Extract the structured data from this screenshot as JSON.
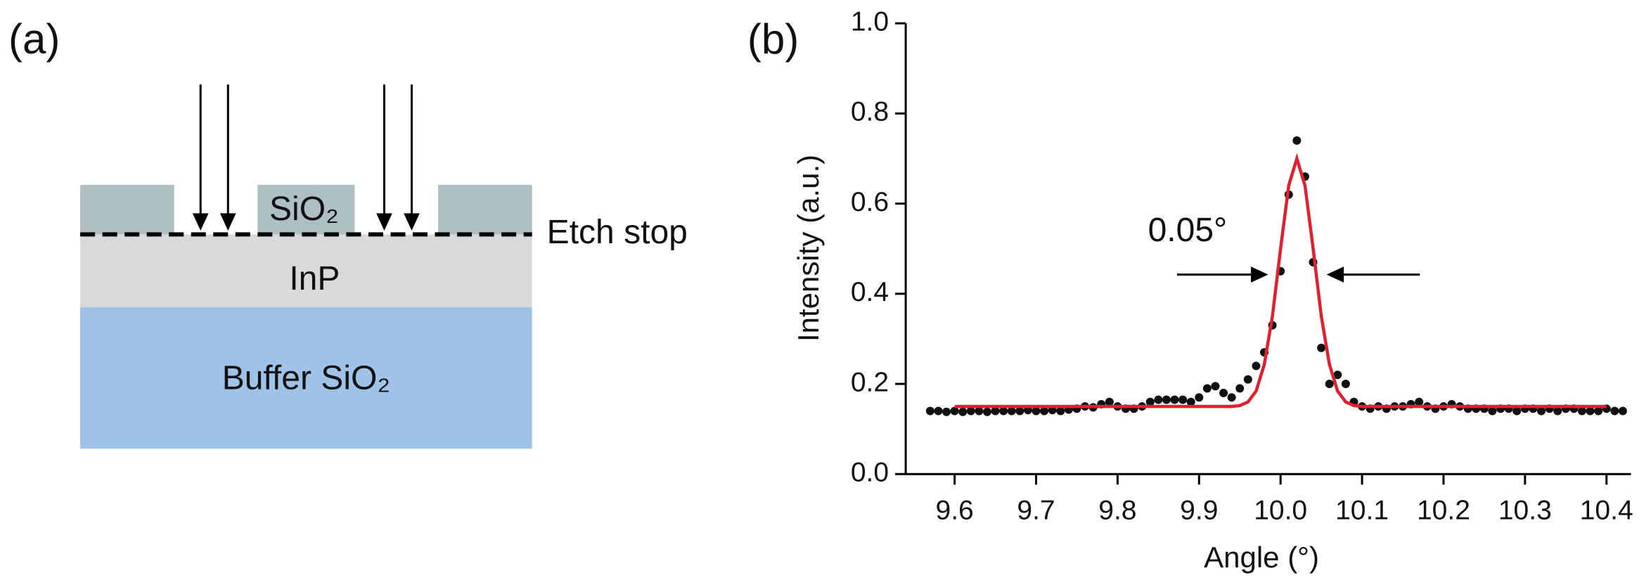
{
  "panels": [
    "(a)",
    "(b)"
  ],
  "diagram": {
    "layers": [
      "SiO₂",
      "InP",
      "Buffer SiO₂"
    ],
    "etch_stop": "Etch stop"
  },
  "chart_data": {
    "type": "scatter",
    "xlabel": "Angle (°)",
    "ylabel": "Intensity (a.u.)",
    "annotation": "0.05°",
    "xlim": [
      9.54,
      10.43
    ],
    "ylim": [
      0,
      1
    ],
    "xticks": [
      9.6,
      9.7,
      9.8,
      9.9,
      {
        "value": 10,
        "label": "10.0"
      },
      10.1,
      10.2,
      10.3,
      10.4
    ],
    "yticks": [
      {
        "value": 0,
        "label": "0.0"
      },
      0.2,
      0.4,
      0.6,
      0.8,
      {
        "value": 1,
        "label": "1.0"
      }
    ],
    "series": [
      {
        "type": "scatter",
        "color": "#111111",
        "x": [
          9.57,
          9.58,
          9.59,
          9.6,
          9.61,
          9.62,
          9.63,
          9.64,
          9.65,
          9.66,
          9.67,
          9.68,
          9.69,
          9.7,
          9.71,
          9.72,
          9.73,
          9.74,
          9.75,
          9.76,
          9.77,
          9.78,
          9.79,
          9.8,
          9.81,
          9.82,
          9.83,
          9.84,
          9.85,
          9.86,
          9.87,
          9.88,
          9.89,
          9.9,
          9.91,
          9.92,
          9.93,
          9.94,
          9.95,
          9.96,
          9.97,
          9.98,
          9.99,
          10.0,
          10.01,
          10.02,
          10.03,
          10.04,
          10.05,
          10.06,
          10.07,
          10.08,
          10.09,
          10.1,
          10.11,
          10.12,
          10.13,
          10.14,
          10.15,
          10.16,
          10.17,
          10.18,
          10.19,
          10.2,
          10.21,
          10.22,
          10.23,
          10.24,
          10.25,
          10.26,
          10.27,
          10.28,
          10.29,
          10.3,
          10.31,
          10.32,
          10.33,
          10.34,
          10.35,
          10.36,
          10.37,
          10.38,
          10.39,
          10.4,
          10.41,
          10.42
        ],
        "values": [
          0.14,
          0.14,
          0.138,
          0.14,
          0.138,
          0.14,
          0.14,
          0.138,
          0.14,
          0.14,
          0.14,
          0.14,
          0.142,
          0.14,
          0.14,
          0.142,
          0.14,
          0.143,
          0.145,
          0.15,
          0.148,
          0.155,
          0.16,
          0.15,
          0.145,
          0.145,
          0.15,
          0.16,
          0.165,
          0.165,
          0.165,
          0.165,
          0.16,
          0.17,
          0.19,
          0.195,
          0.18,
          0.17,
          0.19,
          0.21,
          0.24,
          0.27,
          0.33,
          0.45,
          0.62,
          0.74,
          0.66,
          0.47,
          0.28,
          0.2,
          0.22,
          0.2,
          0.16,
          0.15,
          0.145,
          0.15,
          0.145,
          0.15,
          0.15,
          0.155,
          0.16,
          0.15,
          0.145,
          0.15,
          0.155,
          0.15,
          0.145,
          0.145,
          0.145,
          0.14,
          0.145,
          0.145,
          0.14,
          0.145,
          0.145,
          0.14,
          0.145,
          0.14,
          0.145,
          0.145,
          0.14,
          0.14,
          0.14,
          0.145,
          0.14,
          0.14
        ]
      },
      {
        "type": "line",
        "color": "#e0202e",
        "x": [
          9.6,
          9.94,
          9.95,
          9.96,
          9.97,
          9.98,
          9.99,
          10.0,
          10.01,
          10.02,
          10.03,
          10.04,
          10.05,
          10.06,
          10.07,
          10.08,
          10.09,
          10.1,
          10.4
        ],
        "values": [
          0.15,
          0.15,
          0.152,
          0.16,
          0.184,
          0.243,
          0.35,
          0.5,
          0.64,
          0.7,
          0.64,
          0.5,
          0.35,
          0.243,
          0.184,
          0.16,
          0.152,
          0.15,
          0.15
        ]
      }
    ]
  }
}
